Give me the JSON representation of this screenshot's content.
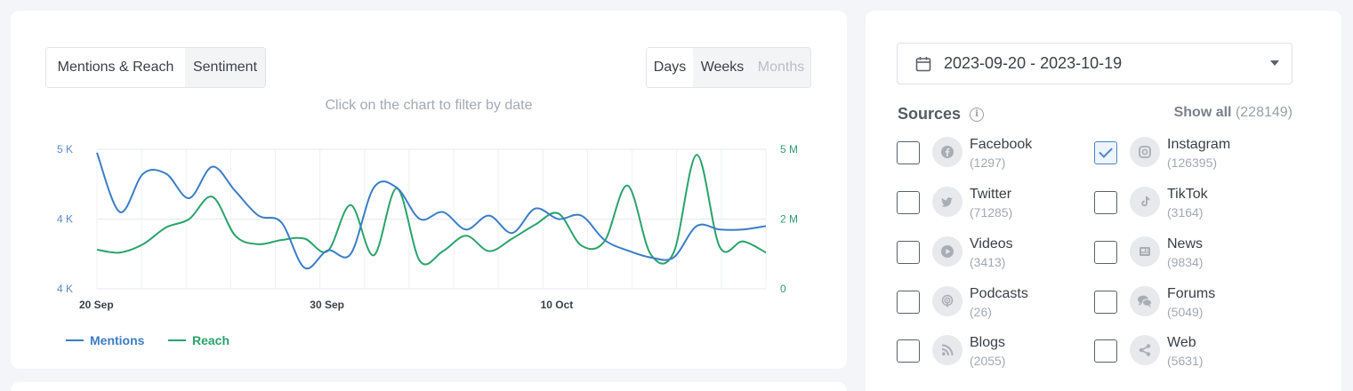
{
  "chart_panel": {
    "view_tabs": [
      "Mentions & Reach",
      "Sentiment"
    ],
    "period_tabs": [
      "Days",
      "Weeks",
      "Months"
    ],
    "hint": "Click on the chart to filter by date",
    "legend": {
      "mentions": "Mentions",
      "reach": "Reach"
    }
  },
  "chart_data": {
    "type": "line",
    "x_ticks": [
      "20 Sep",
      "30 Sep",
      "10 Oct"
    ],
    "y_left_ticks": [
      "5 K",
      "4 K",
      "4 K"
    ],
    "y_right_ticks": [
      "5 M",
      "2 M",
      "0"
    ],
    "x_range_days": [
      0,
      29
    ],
    "y_left_range": [
      3,
      5
    ],
    "y_right_range": [
      0,
      5
    ],
    "series": [
      {
        "name": "Mentions",
        "color": "#3a7dc6",
        "axis": "left",
        "values": [
          4.95,
          4.1,
          4.65,
          4.65,
          4.3,
          4.75,
          4.4,
          4.05,
          3.95,
          3.3,
          3.55,
          3.5,
          4.45,
          4.45,
          4.0,
          4.1,
          3.85,
          4.05,
          3.8,
          4.15,
          4.0,
          4.05,
          3.7,
          3.55,
          3.45,
          3.45,
          3.9,
          3.85,
          3.85,
          3.9
        ]
      },
      {
        "name": "Reach",
        "color": "#2aa36b",
        "axis": "right",
        "values": [
          1.4,
          1.3,
          1.6,
          2.2,
          2.5,
          3.3,
          1.9,
          1.6,
          1.75,
          1.8,
          1.35,
          3.0,
          1.2,
          3.6,
          1.0,
          1.35,
          1.9,
          1.35,
          1.8,
          2.3,
          2.7,
          1.55,
          1.7,
          3.7,
          1.25,
          1.3,
          4.8,
          1.5,
          1.7,
          1.3
        ]
      }
    ]
  },
  "sources_panel": {
    "date_range": "2023-09-20 - 2023-10-19",
    "heading": "Sources",
    "show_all_label": "Show all",
    "show_all_count": "(228149)",
    "items": [
      {
        "name": "Facebook",
        "count": "(1297)",
        "icon": "facebook-icon",
        "checked": false
      },
      {
        "name": "Instagram",
        "count": "(126395)",
        "icon": "instagram-icon",
        "checked": true
      },
      {
        "name": "Twitter",
        "count": "(71285)",
        "icon": "twitter-icon",
        "checked": false
      },
      {
        "name": "TikTok",
        "count": "(3164)",
        "icon": "tiktok-icon",
        "checked": false
      },
      {
        "name": "Videos",
        "count": "(3413)",
        "icon": "play-icon",
        "checked": false
      },
      {
        "name": "News",
        "count": "(9834)",
        "icon": "newspaper-icon",
        "checked": false
      },
      {
        "name": "Podcasts",
        "count": "(26)",
        "icon": "podcast-icon",
        "checked": false
      },
      {
        "name": "Forums",
        "count": "(5049)",
        "icon": "chat-bubbles-icon",
        "checked": false
      },
      {
        "name": "Blogs",
        "count": "(2055)",
        "icon": "rss-icon",
        "checked": false
      },
      {
        "name": "Web",
        "count": "(5631)",
        "icon": "share-icon",
        "checked": false
      }
    ]
  }
}
